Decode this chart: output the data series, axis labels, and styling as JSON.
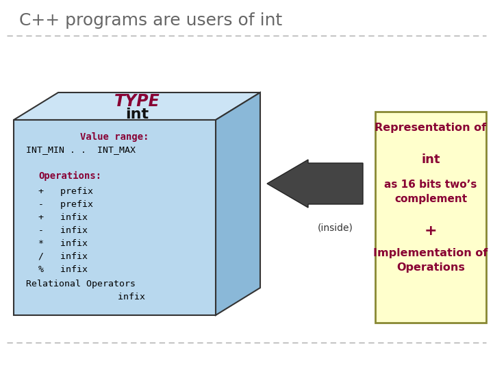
{
  "title": "C++ programs are users of int",
  "title_color": "#666666",
  "title_fontsize": 18,
  "bg_color": "#ffffff",
  "box_face_color": "#b8d8ee",
  "box_top_color": "#cce4f5",
  "box_side_color": "#8ab8d8",
  "box_border_color": "#333333",
  "type_label": "TYPE",
  "type_color": "#880033",
  "int_label": "int",
  "int_color": "#111111",
  "value_range_label": "Value range:",
  "value_range_color": "#880033",
  "int_min_max_label": "INT_MIN . .  INT_MAX",
  "int_min_max_color": "#000000",
  "operations_label": "Operations:",
  "operations_color": "#880033",
  "ops_lines": [
    "+   prefix",
    "-   prefix",
    "+   infix",
    "-   infix",
    "*   infix",
    "/   infix",
    "%   infix"
  ],
  "ops_color": "#000000",
  "relational_label": "Relational Operators",
  "infix_label": "      infix",
  "inside_label": "(inside)",
  "inside_color": "#333333",
  "right_box_bg": "#ffffcc",
  "right_box_border": "#888833",
  "right_box_title": "Representation of",
  "right_box_int": "int",
  "right_box_desc": "as 16 bits two’s\ncomplement",
  "right_box_plus": "+",
  "right_box_impl": "Implementation of\nOperations",
  "right_text_color": "#880033",
  "arrow_color": "#444444",
  "dash_color": "#aaaaaa"
}
